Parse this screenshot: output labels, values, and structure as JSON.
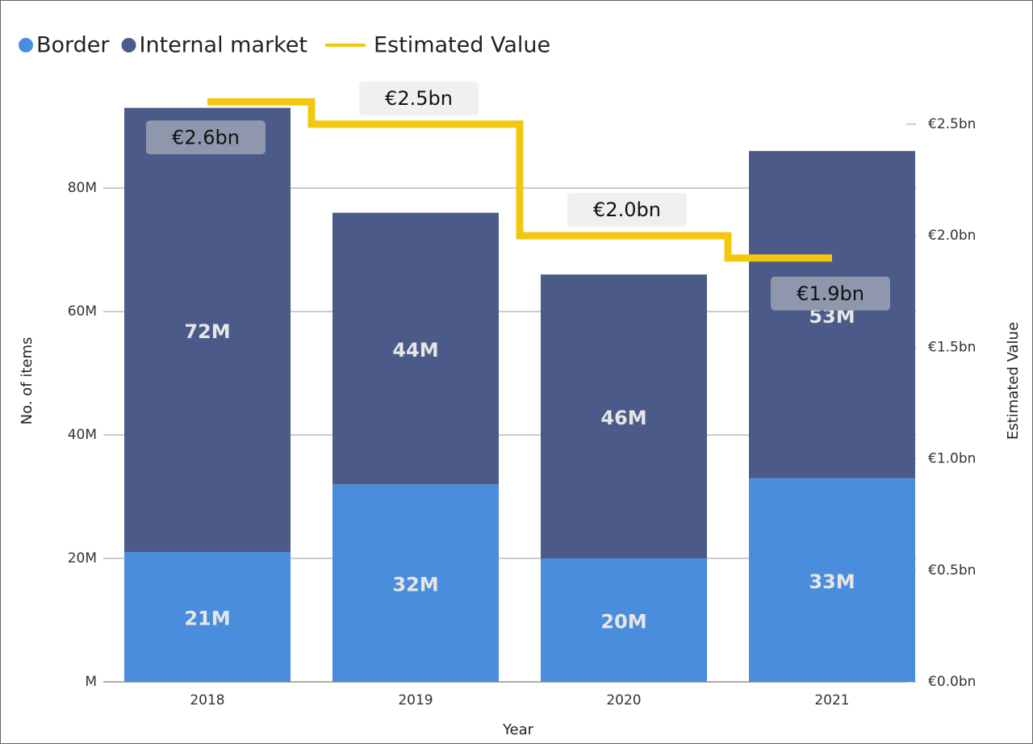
{
  "chart_data": {
    "type": "bar",
    "x_label": "Year",
    "y_label": "No. of items",
    "y2_label": "Estimated Value",
    "categories": [
      "2018",
      "2019",
      "2020",
      "2021"
    ],
    "series": [
      {
        "name": "Border",
        "color": "#4a8ddc",
        "values": [
          21,
          32,
          20,
          33
        ],
        "value_labels": [
          "21M",
          "32M",
          "20M",
          "33M"
        ]
      },
      {
        "name": "Internal market",
        "color": "#4b5a88",
        "values": [
          72,
          44,
          46,
          53
        ],
        "value_labels": [
          "72M",
          "44M",
          "46M",
          "53M"
        ]
      },
      {
        "name": "Estimated Value",
        "type": "line",
        "axis": "y2",
        "color": "#f2c80f",
        "values": [
          2.6,
          2.5,
          2.0,
          1.9
        ],
        "value_labels": [
          "€2.6bn",
          "€2.5bn",
          "€2.0bn",
          "€1.9bn"
        ]
      }
    ],
    "ylim": [
      0,
      97.4
    ],
    "yticks": [
      {
        "value": 0,
        "label": "M"
      },
      {
        "value": 20,
        "label": "20M"
      },
      {
        "value": 40,
        "label": "40M"
      },
      {
        "value": 60,
        "label": "60M"
      },
      {
        "value": 80,
        "label": "80M"
      }
    ],
    "y2lim": [
      0,
      2.695
    ],
    "y2ticks": [
      {
        "value": 0,
        "label": "€0.0bn"
      },
      {
        "value": 0.5,
        "label": "€0.5bn"
      },
      {
        "value": 1,
        "label": "€1.0bn"
      },
      {
        "value": 1.5,
        "label": "€1.5bn"
      },
      {
        "value": 2,
        "label": "€2.0bn"
      },
      {
        "value": 2.5,
        "label": "€2.5bn"
      }
    ],
    "grid": true,
    "legend": "top-left"
  }
}
